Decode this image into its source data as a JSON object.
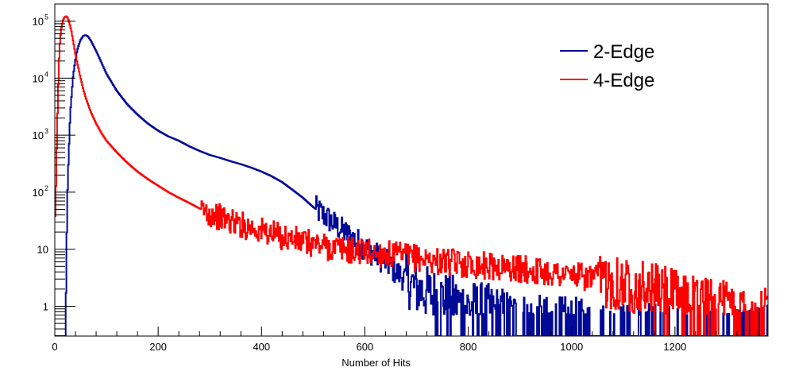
{
  "chart_data": {
    "type": "line",
    "style": "step histogram",
    "title": "",
    "xlabel": "Number of Hits",
    "ylabel": "",
    "xlim": [
      0,
      1380
    ],
    "ylim": [
      0.3,
      200000
    ],
    "yscale": "log",
    "grid": false,
    "legend_position": "top-right",
    "x_ticks": [
      {
        "value": 0,
        "label": "0"
      },
      {
        "value": 200,
        "label": "200"
      },
      {
        "value": 400,
        "label": "400"
      },
      {
        "value": 600,
        "label": "600"
      },
      {
        "value": 800,
        "label": "800"
      },
      {
        "value": 1000,
        "label": "1000"
      },
      {
        "value": 1200,
        "label": "1200"
      }
    ],
    "y_ticks": [
      {
        "value": 1,
        "label": "1"
      },
      {
        "value": 10,
        "label": "10"
      },
      {
        "value": 100,
        "label": "10",
        "sup": "2"
      },
      {
        "value": 1000,
        "label": "10",
        "sup": "3"
      },
      {
        "value": 10000,
        "label": "10",
        "sup": "4"
      },
      {
        "value": 100000,
        "label": "10",
        "sup": "5"
      }
    ],
    "series": [
      {
        "name": "2-Edge",
        "color": "#000a96",
        "x": [
          0,
          20,
          25,
          30,
          35,
          40,
          45,
          50,
          55,
          60,
          65,
          70,
          80,
          90,
          100,
          120,
          140,
          160,
          180,
          200,
          220,
          240,
          260,
          280,
          300,
          320,
          340,
          360,
          380,
          400,
          420,
          440,
          460,
          480,
          500,
          520,
          540,
          560,
          580,
          600,
          620,
          640,
          660,
          680,
          700,
          750,
          800,
          850,
          900,
          950,
          1000,
          1050,
          1100,
          1150,
          1200,
          1250,
          1300,
          1350,
          1380
        ],
        "y": [
          0.3,
          0.3,
          150,
          2500,
          10000,
          22000,
          35000,
          47000,
          55000,
          57000,
          53000,
          45000,
          30000,
          19000,
          12000,
          6000,
          3500,
          2300,
          1600,
          1200,
          950,
          800,
          640,
          530,
          450,
          400,
          350,
          310,
          270,
          230,
          190,
          150,
          110,
          80,
          55,
          40,
          28,
          20,
          15,
          11,
          8,
          6,
          4,
          3,
          2,
          1.4,
          1,
          0.8,
          0.6,
          0.5,
          0.5,
          0.4,
          0.4,
          0.4,
          0.35,
          0.35,
          0.35,
          0.35,
          0.35
        ]
      },
      {
        "name": "4-Edge",
        "color": "#ff0000",
        "x": [
          0,
          2,
          5,
          8,
          10,
          13,
          16,
          19,
          22,
          25,
          28,
          32,
          36,
          40,
          45,
          50,
          55,
          60,
          70,
          80,
          90,
          100,
          120,
          140,
          160,
          180,
          200,
          220,
          240,
          260,
          280,
          300,
          320,
          340,
          360,
          380,
          400,
          420,
          440,
          460,
          480,
          500,
          520,
          540,
          560,
          580,
          600,
          650,
          700,
          750,
          800,
          850,
          900,
          950,
          1000,
          1050,
          1100,
          1150,
          1200,
          1250,
          1300,
          1380
        ],
        "y": [
          10,
          100,
          2000,
          20000,
          45000,
          80000,
          105000,
          118000,
          122000,
          115000,
          95000,
          68000,
          42000,
          26000,
          16000,
          10000,
          6500,
          4500,
          2500,
          1600,
          1100,
          800,
          500,
          330,
          230,
          170,
          130,
          100,
          80,
          65,
          52,
          43,
          36,
          31,
          27,
          24,
          21,
          18.5,
          16.5,
          15,
          13.5,
          12.5,
          11.5,
          10.5,
          10,
          9.5,
          9,
          8,
          7,
          6,
          5.5,
          5,
          4.5,
          4,
          3.5,
          3,
          2.5,
          2,
          1.5,
          1.2,
          1,
          0.8
        ]
      }
    ]
  }
}
